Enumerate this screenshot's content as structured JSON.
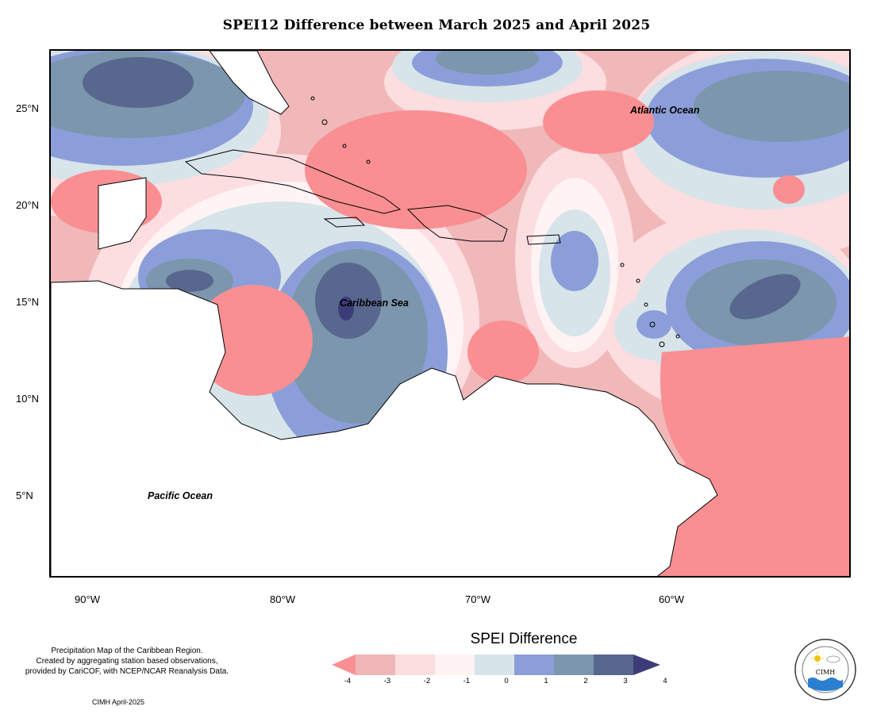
{
  "title": "SPEI12 Difference between March 2025 and April 2025",
  "map": {
    "y_axis_labels": [
      "25°N",
      "20°N",
      "15°N",
      "10°N",
      "5°N"
    ],
    "x_axis_labels": [
      "90°W",
      "80°W",
      "70°W",
      "60°W"
    ],
    "ocean_labels": {
      "atlantic": "Atlantic Ocean",
      "caribbean": "Caribbean Sea",
      "pacific": "Pacific Ocean"
    }
  },
  "legend": {
    "title": "SPEI Difference",
    "ticks": [
      "-4",
      "-3",
      "-2",
      "-1",
      "0",
      "1",
      "2",
      "3",
      "4"
    ],
    "colors": [
      "#f98f92",
      "#efb6b7",
      "#fcdde0",
      "#fff3f3",
      "#d7e4ea",
      "#8c9ed9",
      "#7b96ad",
      "#58678e",
      "#3c3d78"
    ]
  },
  "credits": {
    "lines": [
      "Precipitation Map of the Caribbean Region.",
      "Created by aggregating station based observations,",
      "provided by CariCOF, with NCEP/NCAR Reanalysis Data."
    ],
    "date": "CIMH April-2025"
  },
  "logo": {
    "text": "CIMH",
    "icons": [
      "sun-icon",
      "cloud-icon",
      "water-waves-icon"
    ]
  }
}
